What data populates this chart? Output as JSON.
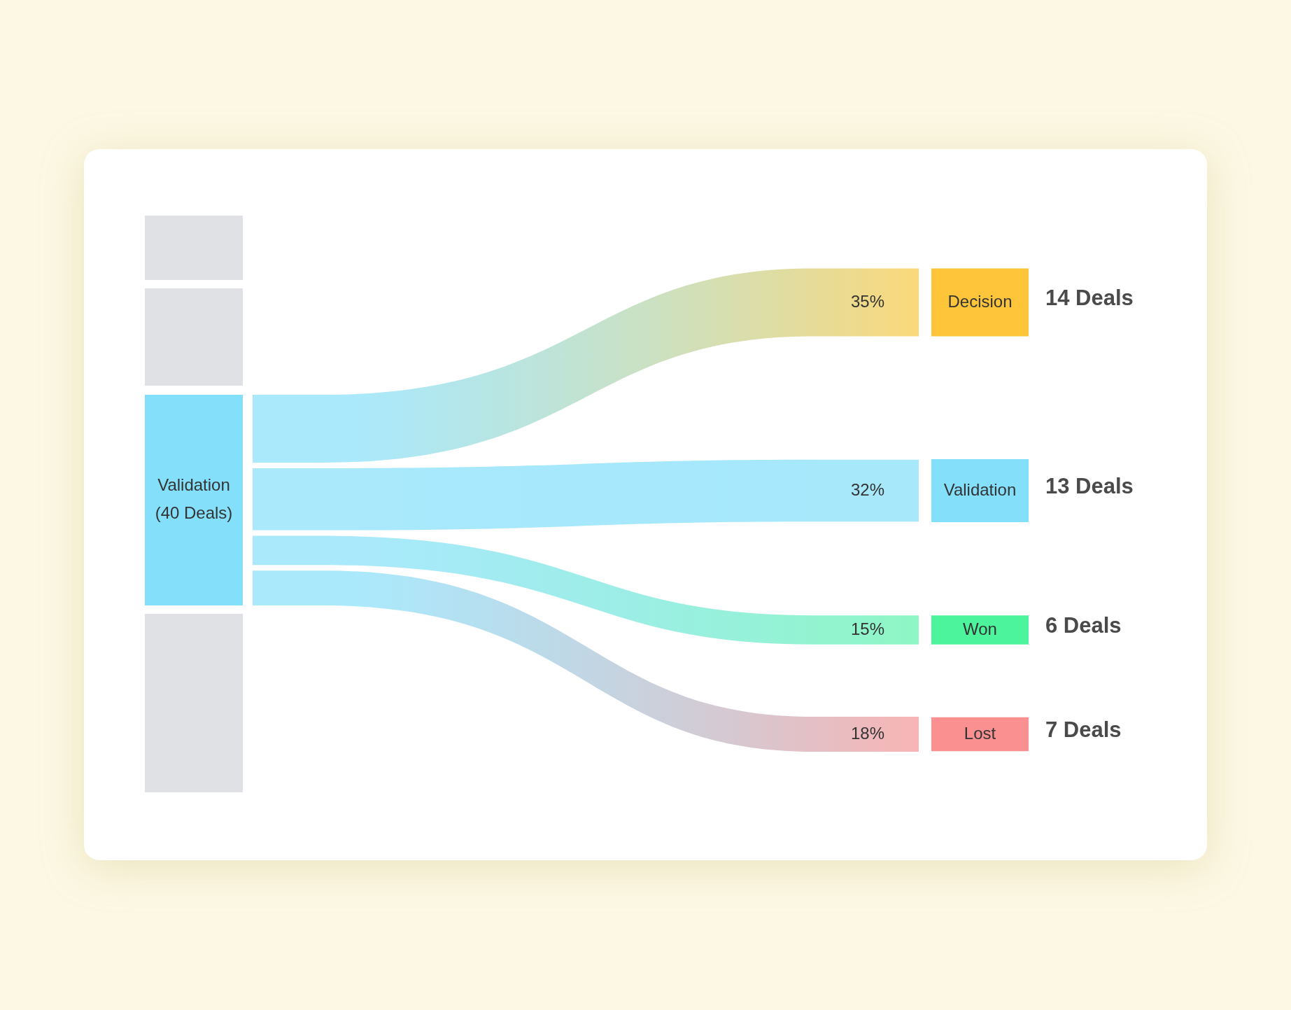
{
  "chart_data": {
    "type": "other",
    "color": "#84dffb",
    "annotations": [
      "Validation\n(40 Deals)"
    ],
    "categories": [
      "Decision",
      "Validation",
      "Won",
      "Lost"
    ],
    "series": [
      {
        "values": [
          14,
          13,
          6,
          7
        ],
        "value_labels": [
          "14 Deals",
          "13 Deals",
          "6 Deals",
          "7 Deals"
        ],
        "colors": [
          "#fec53a",
          "#84dffb",
          "#4cf59c",
          "#fb9090"
        ]
      },
      {
        "values": [
          35,
          32,
          15,
          18
        ],
        "value_labels": [
          "35%",
          "32%",
          "15%",
          "18%"
        ],
        "colors": [
          "#fad87a",
          "#a8e8fb",
          "#8ef7c4",
          "#f8b4b4"
        ]
      }
    ]
  }
}
